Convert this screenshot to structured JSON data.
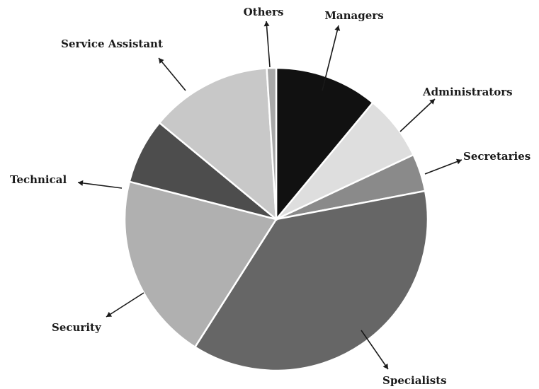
{
  "chart_data": {
    "type": "pie",
    "title": "",
    "legend": "none",
    "slices": [
      {
        "label": "Managers",
        "value": 11,
        "color": "#111111"
      },
      {
        "label": "Administrators",
        "value": 7,
        "color": "#dedede"
      },
      {
        "label": "Secretaries",
        "value": 4,
        "color": "#8a8a8a"
      },
      {
        "label": "Specialists",
        "value": 37,
        "color": "#666666"
      },
      {
        "label": "Security",
        "value": 20,
        "color": "#b0b0b0"
      },
      {
        "label": "Technical",
        "value": 7,
        "color": "#4d4d4d"
      },
      {
        "label": "Service Assistant",
        "value": 13,
        "color": "#c8c8c8"
      },
      {
        "label": "Others",
        "value": 1,
        "color": "#a9a9a9"
      }
    ]
  }
}
